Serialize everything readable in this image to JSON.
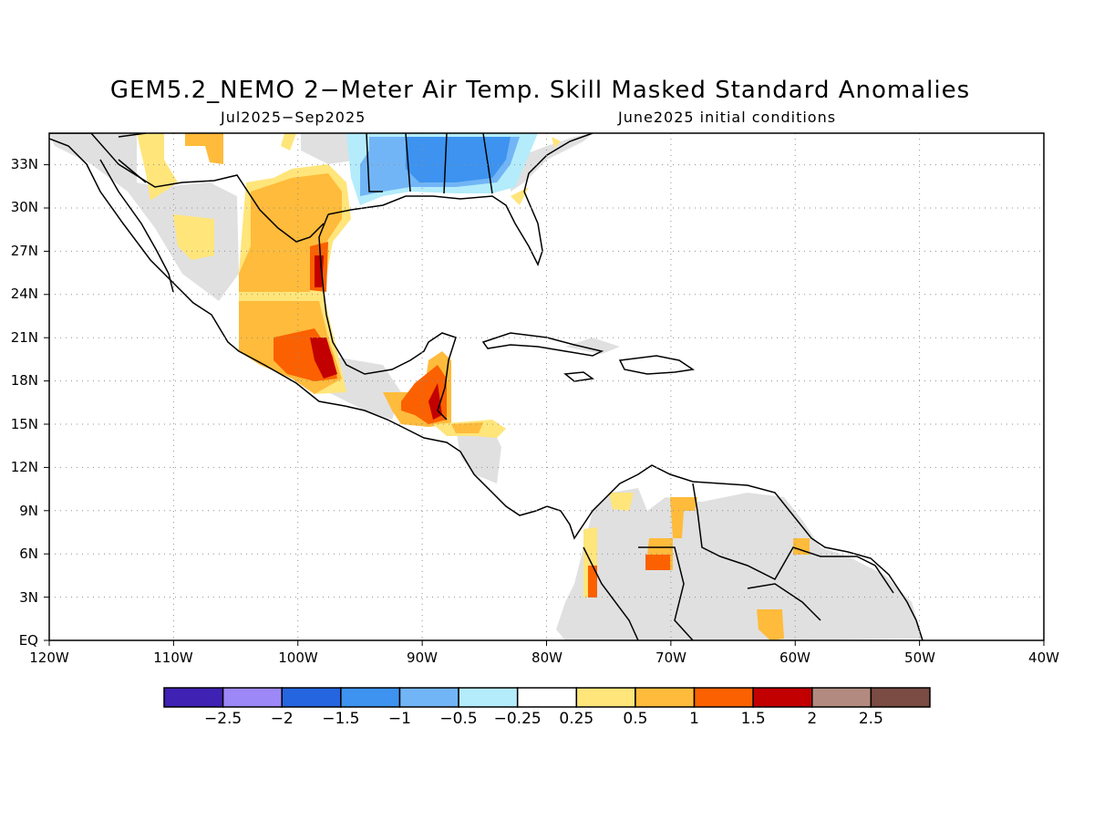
{
  "title": "GEM5.2_NEMO 2−Meter Air Temp. Skill Masked Standard Anomalies",
  "subtitle_left": "Jul2025−Sep2025",
  "subtitle_right": "June2025 initial conditions",
  "map": {
    "lon_labels": [
      "120W",
      "110W",
      "100W",
      "90W",
      "80W",
      "70W",
      "60W",
      "50W",
      "40W"
    ],
    "lat_labels": [
      "EQ",
      "3N",
      "6N",
      "9N",
      "12N",
      "15N",
      "18N",
      "21N",
      "24N",
      "27N",
      "30N",
      "33N"
    ],
    "grid": "dotted"
  },
  "colorbar": {
    "labels": [
      "−2.5",
      "−2",
      "−1.5",
      "−1",
      "−0.5",
      "−0.25",
      "0.25",
      "0.5",
      "1",
      "1.5",
      "2",
      "2.5"
    ],
    "colors": [
      "#3f22b4",
      "#9c88f6",
      "#2565e0",
      "#3d93ef",
      "#72b5f6",
      "#b4ecfb",
      "#ffffff",
      "#ffe57a",
      "#ffbb3b",
      "#fb6100",
      "#c30000",
      "#b38a80",
      "#7a4c44"
    ]
  },
  "colors": {
    "masked": "#e0e0e0",
    "land_border": "#000000"
  }
}
